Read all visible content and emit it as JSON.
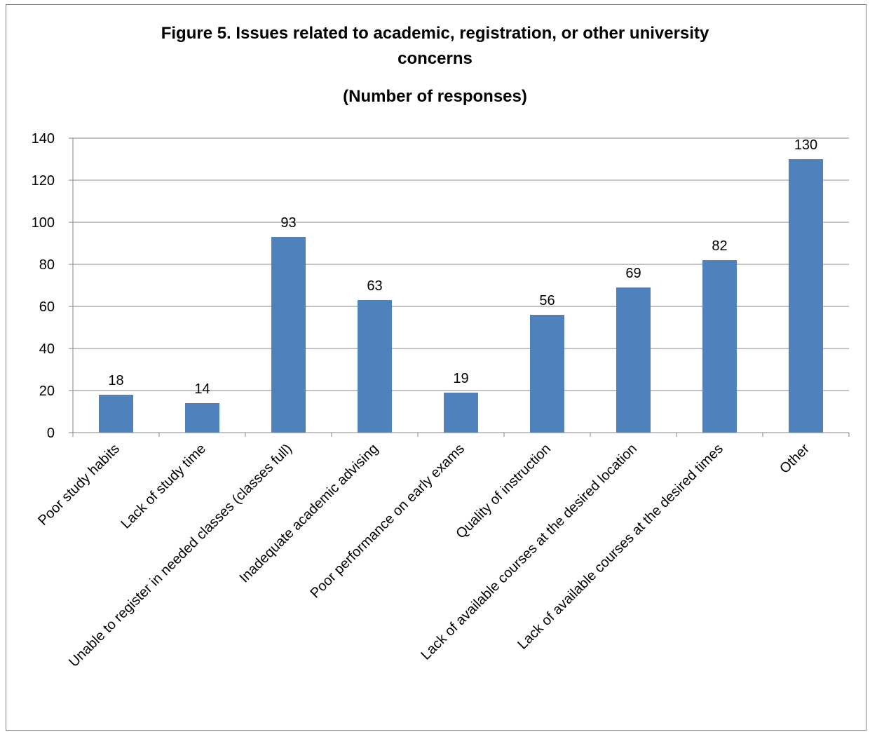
{
  "chart_data": {
    "type": "bar",
    "title": "Figure 5. Issues related to academic, registration, or other university concerns",
    "title_lines": [
      "Figure 5. Issues related to academic, registration, or other university",
      "concerns"
    ],
    "subtitle": "(Number of responses)",
    "categories": [
      "Poor study habits",
      "Lack of study time",
      "Unable to register in needed classes (classes full)",
      "Inadequate academic advising",
      "Poor performance on early exams",
      "Quality of instruction",
      "Lack of available courses at the desired location",
      "Lack of available courses at the desired times",
      "Other"
    ],
    "values": [
      18,
      14,
      93,
      63,
      19,
      56,
      69,
      82,
      130
    ],
    "data_labels": [
      "18",
      "14",
      "93",
      "63",
      "19",
      "56",
      "69",
      "82",
      "130"
    ],
    "ylim": [
      0,
      140
    ],
    "yticks": [
      "0",
      "20",
      "40",
      "60",
      "80",
      "100",
      "120",
      "140"
    ],
    "xlabel": "",
    "ylabel": "",
    "grid": true,
    "legend": "none",
    "bar_color": "#4f81bd"
  }
}
